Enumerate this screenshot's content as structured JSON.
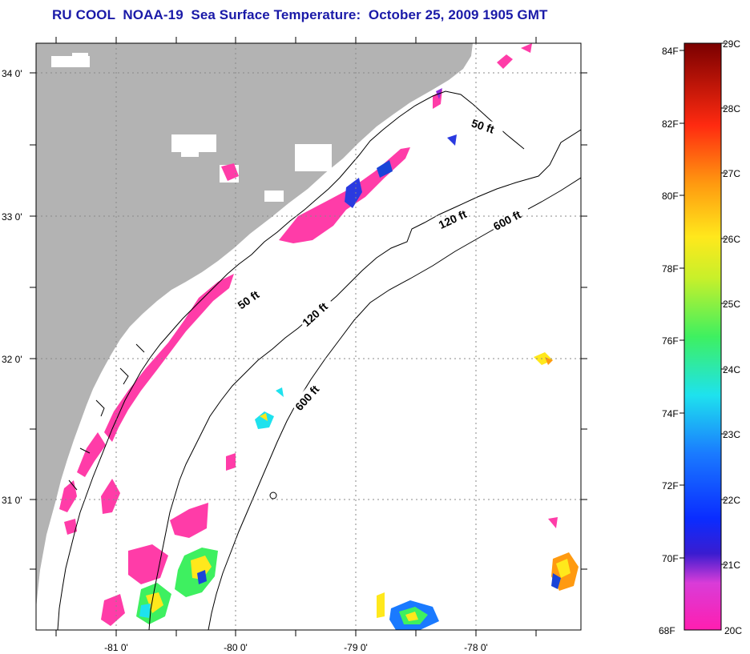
{
  "title": "RU COOL  NOAA-19  Sea Surface Temperature:  October 25, 2009 1905 GMT",
  "map": {
    "lat_labels": [
      "34 0'",
      "33 0'",
      "32 0'",
      "31 0'"
    ],
    "lon_labels": [
      "-81 0'",
      "-80 0'",
      "-79 0'",
      "-78 0'"
    ],
    "contour_labels": [
      "50 ft",
      "50 ft",
      "120 ft",
      "120 ft",
      "600 ft",
      "600 ft"
    ],
    "colors": {
      "land": "#b3b3b3",
      "cloud": "#ffffff",
      "sst_20c": "#ff3ca8",
      "isobath": "#000000"
    }
  },
  "colorbar": {
    "fahrenheit": [
      "84F",
      "82F",
      "80F",
      "78F",
      "76F",
      "74F",
      "72F",
      "70F",
      "68F"
    ],
    "celsius": [
      "29C",
      "28C",
      "27C",
      "26C",
      "25C",
      "24C",
      "23C",
      "22C",
      "21C",
      "20C"
    ]
  }
}
